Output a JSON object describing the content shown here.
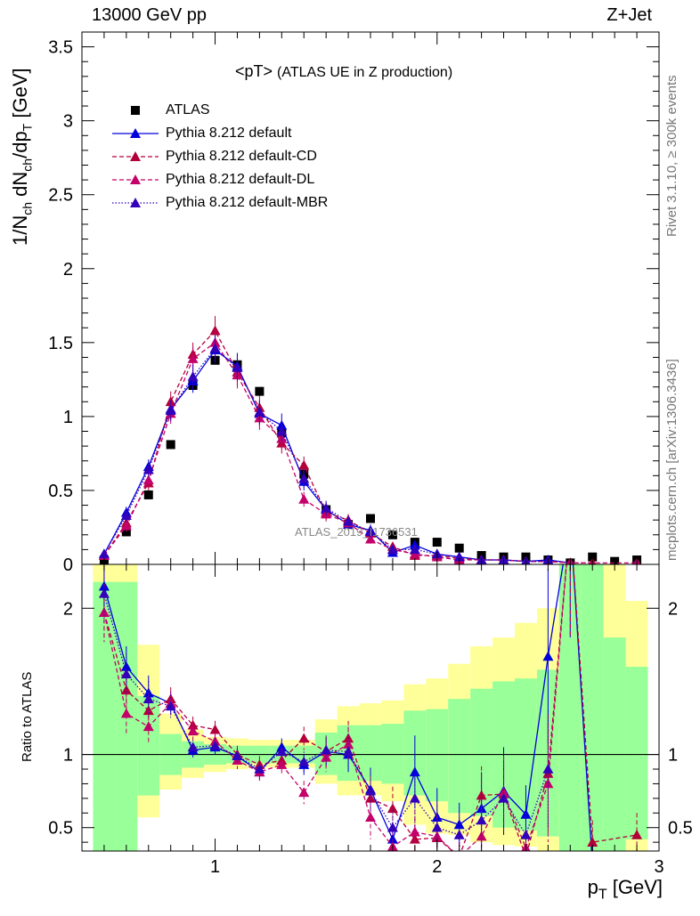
{
  "header": {
    "left": "13000 GeV pp",
    "right": "Z+Jet"
  },
  "side_labels": {
    "rivet": "Rivet 3.1.10, ≥ 300k events",
    "mcplots": "mcplots.cern.ch [arXiv:1306.3436]"
  },
  "watermark": "ATLAS_2019_I1736531",
  "chart_data": [
    {
      "type": "scatter",
      "panel": "main",
      "title_main": "<pT>",
      "title_sub": "(ATLAS UE in Z production)",
      "xlabel": "p_T [GeV]",
      "ylabel": "1/N_ch dN_ch/dp_T [GeV]",
      "xlim": [
        0.4,
        3.0
      ],
      "ylim": [
        0,
        3.6
      ],
      "x_ticks": [
        1,
        2,
        3
      ],
      "y_ticks": [
        "0",
        "0.5",
        "1",
        "1.5",
        "2",
        "2.5",
        "3",
        "3.5"
      ],
      "legend_position": "top-left",
      "series": [
        {
          "name": "ATLAS",
          "style": "data",
          "color": "#000000",
          "x": [
            0.5,
            0.6,
            0.7,
            0.8,
            0.9,
            1.0,
            1.1,
            1.2,
            1.3,
            1.4,
            1.5,
            1.6,
            1.7,
            1.8,
            1.9,
            2.0,
            2.1,
            2.2,
            2.3,
            2.4,
            2.5,
            2.6,
            2.7,
            2.8,
            2.9
          ],
          "y": [
            0.03,
            0.22,
            0.47,
            0.81,
            1.21,
            1.38,
            1.35,
            1.17,
            0.89,
            0.61,
            0.37,
            0.27,
            0.31,
            0.2,
            0.15,
            0.15,
            0.11,
            0.06,
            0.05,
            0.05,
            0.03,
            0.01,
            0.05,
            0.02,
            0.03
          ]
        },
        {
          "name": "Pythia 8.212 default",
          "style": "solid",
          "color": "#0000dd",
          "x": [
            0.5,
            0.6,
            0.7,
            0.8,
            0.9,
            1.0,
            1.1,
            1.2,
            1.3,
            1.4,
            1.5,
            1.6,
            1.7,
            1.8,
            1.9,
            2.0,
            2.1,
            2.2,
            2.3,
            2.4,
            2.5,
            2.6
          ],
          "y": [
            0.07,
            0.35,
            0.66,
            1.05,
            1.24,
            1.45,
            1.34,
            1.02,
            0.94,
            0.56,
            0.37,
            0.27,
            0.23,
            0.08,
            0.13,
            0.07,
            0.05,
            0.03,
            0.03,
            0.02,
            0.03,
            0.01
          ],
          "err": [
            0.02,
            0.04,
            0.05,
            0.07,
            0.08,
            0.09,
            0.09,
            0.08,
            0.08,
            0.06,
            0.05,
            0.04,
            0.04,
            0.03,
            0.03,
            0.02,
            0.02,
            0.02,
            0.02,
            0.01,
            0.01,
            0.01
          ]
        },
        {
          "name": "Pythia 8.212 default-CD",
          "style": "dashed",
          "color": "#b3003a",
          "x": [
            0.5,
            0.6,
            0.7,
            0.8,
            0.9,
            1.0,
            1.1,
            1.2,
            1.3,
            1.4,
            1.5,
            1.6,
            1.7,
            1.8,
            1.9,
            2.0,
            2.1,
            2.2,
            2.3,
            2.4,
            2.5,
            2.6,
            2.7
          ],
          "y": [
            0.06,
            0.28,
            0.55,
            1.1,
            1.42,
            1.58,
            1.3,
            1.06,
            0.82,
            0.67,
            0.35,
            0.3,
            0.21,
            0.12,
            0.06,
            0.06,
            0.04,
            0.03,
            0.03,
            0.02,
            0.02,
            0.01,
            0.01
          ],
          "err": [
            0.02,
            0.04,
            0.05,
            0.07,
            0.08,
            0.1,
            0.09,
            0.08,
            0.07,
            0.06,
            0.05,
            0.04,
            0.04,
            0.03,
            0.02,
            0.02,
            0.02,
            0.02,
            0.02,
            0.01,
            0.01,
            0.01,
            0.01
          ]
        },
        {
          "name": "Pythia 8.212 default-DL",
          "style": "dashed",
          "color": "#c4006a",
          "x": [
            0.5,
            0.6,
            0.7,
            0.8,
            0.9,
            1.0,
            1.1,
            1.2,
            1.3,
            1.4,
            1.5,
            1.6,
            1.7,
            1.8,
            1.9,
            2.0,
            2.1,
            2.2,
            2.3,
            2.4,
            2.5,
            2.6,
            2.9
          ],
          "y": [
            0.06,
            0.26,
            0.57,
            1.02,
            1.39,
            1.5,
            1.28,
            0.99,
            0.85,
            0.44,
            0.34,
            0.28,
            0.17,
            0.1,
            0.07,
            0.05,
            0.03,
            0.03,
            0.03,
            0.02,
            0.02,
            0.01,
            0.01
          ],
          "err": [
            0.02,
            0.04,
            0.05,
            0.07,
            0.08,
            0.09,
            0.09,
            0.08,
            0.07,
            0.05,
            0.05,
            0.04,
            0.03,
            0.02,
            0.02,
            0.02,
            0.02,
            0.02,
            0.02,
            0.01,
            0.01,
            0.01,
            0.01
          ]
        },
        {
          "name": "Pythia 8.212 default-MBR",
          "style": "dotted",
          "color": "#3300bb",
          "x": [
            0.5,
            0.6,
            0.7,
            0.8,
            0.9,
            1.0,
            1.1,
            1.2,
            1.3,
            1.4,
            1.5,
            1.6,
            1.7,
            1.8,
            1.9,
            2.0,
            2.1,
            2.2,
            2.3,
            2.4,
            2.5
          ],
          "y": [
            0.07,
            0.33,
            0.64,
            1.04,
            1.27,
            1.46,
            1.33,
            1.03,
            0.9,
            0.58,
            0.38,
            0.29,
            0.22,
            0.1,
            0.1,
            0.07,
            0.05,
            0.03,
            0.03,
            0.02,
            0.02
          ],
          "err": [
            0.02,
            0.04,
            0.05,
            0.07,
            0.08,
            0.09,
            0.09,
            0.08,
            0.07,
            0.06,
            0.05,
            0.04,
            0.04,
            0.03,
            0.02,
            0.02,
            0.02,
            0.02,
            0.02,
            0.01,
            0.01
          ]
        }
      ]
    },
    {
      "type": "line",
      "panel": "ratio",
      "ylabel": "Ratio to ATLAS",
      "xlim": [
        0.4,
        3.0
      ],
      "ylim": [
        0.34,
        2.3
      ],
      "y_ticks": [
        "0.5",
        "1",
        "2"
      ],
      "x_ticks": [
        "1",
        "2",
        "3"
      ],
      "reference_line": 1,
      "bands": {
        "bin_edges": [
          0.45,
          0.55,
          0.65,
          0.75,
          0.85,
          0.95,
          1.05,
          1.15,
          1.25,
          1.35,
          1.45,
          1.55,
          1.65,
          1.75,
          1.85,
          1.95,
          2.05,
          2.15,
          2.25,
          2.35,
          2.45,
          2.55,
          2.65,
          2.75,
          2.85,
          2.95
        ],
        "yellow_lo": [
          0.3,
          0.3,
          0.57,
          0.76,
          0.84,
          0.88,
          0.9,
          0.91,
          0.91,
          0.91,
          0.8,
          0.72,
          0.72,
          0.68,
          0.52,
          0.46,
          0.45,
          0.4,
          0.38,
          0.37,
          0.33,
          0.3,
          0.3,
          0.3,
          0.3
        ],
        "yellow_hi": [
          2.3,
          2.3,
          1.75,
          1.28,
          1.17,
          1.12,
          1.11,
          1.1,
          1.1,
          1.1,
          1.24,
          1.33,
          1.35,
          1.37,
          1.48,
          1.52,
          1.62,
          1.74,
          1.8,
          1.9,
          2.0,
          2.3,
          2.3,
          2.3,
          2.05
        ],
        "green_lo": [
          0.3,
          0.3,
          0.72,
          0.86,
          0.91,
          0.93,
          0.94,
          0.94,
          0.94,
          0.94,
          0.86,
          0.82,
          0.82,
          0.8,
          0.72,
          0.68,
          0.6,
          0.58,
          0.5,
          0.48,
          0.44,
          0.3,
          0.3,
          0.3,
          0.42
        ],
        "green_hi": [
          2.18,
          2.18,
          1.4,
          1.14,
          1.09,
          1.07,
          1.06,
          1.06,
          1.06,
          1.06,
          1.15,
          1.2,
          1.2,
          1.21,
          1.3,
          1.31,
          1.38,
          1.45,
          1.5,
          1.52,
          1.58,
          2.3,
          2.3,
          1.8,
          1.6
        ]
      },
      "series": [
        {
          "name": "Pythia 8.212 default",
          "style": "solid",
          "color": "#0000dd",
          "x": [
            0.5,
            0.6,
            0.7,
            0.8,
            0.9,
            1.0,
            1.1,
            1.2,
            1.3,
            1.4,
            1.5,
            1.6,
            1.7,
            1.8,
            1.9,
            2.0,
            2.1,
            2.2,
            2.3,
            2.4,
            2.5,
            2.6,
            2.7
          ],
          "y": [
            2.15,
            1.6,
            1.42,
            1.35,
            1.03,
            1.05,
            0.99,
            0.88,
            1.05,
            0.93,
            1.02,
            1.0,
            0.76,
            0.42,
            0.88,
            0.57,
            0.52,
            0.63,
            0.75,
            0.59,
            1.67,
            2.6,
            0.25
          ],
          "err": [
            0.2,
            0.14,
            0.12,
            0.08,
            0.05,
            0.05,
            0.05,
            0.05,
            0.06,
            0.07,
            0.1,
            0.12,
            0.15,
            0.12,
            0.25,
            0.2,
            0.15,
            0.25,
            0.3,
            0.2,
            0.6,
            0.8,
            0.2
          ]
        },
        {
          "name": "Pythia 8.212 default-CD",
          "style": "dashed",
          "color": "#b3003a",
          "x": [
            0.5,
            0.6,
            0.7,
            0.8,
            0.9,
            1.0,
            1.1,
            1.2,
            1.3,
            1.4,
            1.5,
            1.6,
            1.7,
            1.8,
            1.9,
            2.0,
            2.1,
            2.2,
            2.3,
            2.4,
            2.5,
            2.6,
            2.7,
            2.9
          ],
          "y": [
            1.97,
            1.44,
            1.3,
            1.38,
            1.2,
            1.17,
            1.0,
            0.93,
            0.96,
            1.11,
            1.02,
            1.11,
            0.7,
            0.63,
            0.42,
            0.43,
            0.3,
            0.72,
            0.73,
            0.3,
            0.87,
            2.6,
            0.4,
            0.45
          ],
          "err": [
            0.2,
            0.14,
            0.12,
            0.08,
            0.06,
            0.06,
            0.06,
            0.06,
            0.07,
            0.08,
            0.1,
            0.12,
            0.15,
            0.15,
            0.15,
            0.15,
            0.1,
            0.2,
            0.25,
            0.1,
            0.4,
            0.8,
            0.15,
            0.15
          ]
        },
        {
          "name": "Pythia 8.212 default-DL",
          "style": "dashed",
          "color": "#c4006a",
          "x": [
            0.5,
            0.6,
            0.7,
            0.8,
            0.9,
            1.0,
            1.1,
            1.2,
            1.3,
            1.4,
            1.5,
            1.6,
            1.7,
            1.8,
            1.9,
            2.0,
            2.1,
            2.2,
            2.3,
            2.4,
            2.5,
            2.6
          ],
          "y": [
            1.97,
            1.28,
            1.19,
            1.35,
            1.16,
            1.09,
            0.96,
            0.88,
            0.93,
            0.74,
            0.98,
            1.07,
            0.57,
            0.37,
            0.47,
            0.44,
            0.3,
            0.44,
            0.74,
            0.36,
            0.8,
            2.6
          ],
          "err": [
            0.2,
            0.14,
            0.12,
            0.08,
            0.06,
            0.06,
            0.06,
            0.06,
            0.07,
            0.08,
            0.1,
            0.12,
            0.15,
            0.15,
            0.15,
            0.15,
            0.1,
            0.2,
            0.25,
            0.1,
            0.4,
            0.8
          ]
        },
        {
          "name": "Pythia 8.212 default-MBR",
          "style": "dotted",
          "color": "#3300bb",
          "x": [
            0.5,
            0.6,
            0.7,
            0.8,
            0.9,
            1.0,
            1.1,
            1.2,
            1.3,
            1.4,
            1.5,
            1.6,
            1.7,
            1.8,
            1.9,
            2.0,
            2.1,
            2.2,
            2.3,
            2.4,
            2.5
          ],
          "y": [
            2.1,
            1.55,
            1.38,
            1.33,
            1.05,
            1.06,
            0.99,
            0.9,
            1.02,
            0.95,
            1.03,
            1.02,
            0.75,
            0.5,
            0.7,
            0.5,
            0.45,
            0.55,
            0.7,
            0.45,
            0.9
          ],
          "err": [
            0.2,
            0.14,
            0.12,
            0.08,
            0.05,
            0.05,
            0.05,
            0.05,
            0.06,
            0.07,
            0.1,
            0.12,
            0.15,
            0.12,
            0.2,
            0.15,
            0.12,
            0.2,
            0.25,
            0.15,
            0.4
          ]
        }
      ]
    }
  ]
}
